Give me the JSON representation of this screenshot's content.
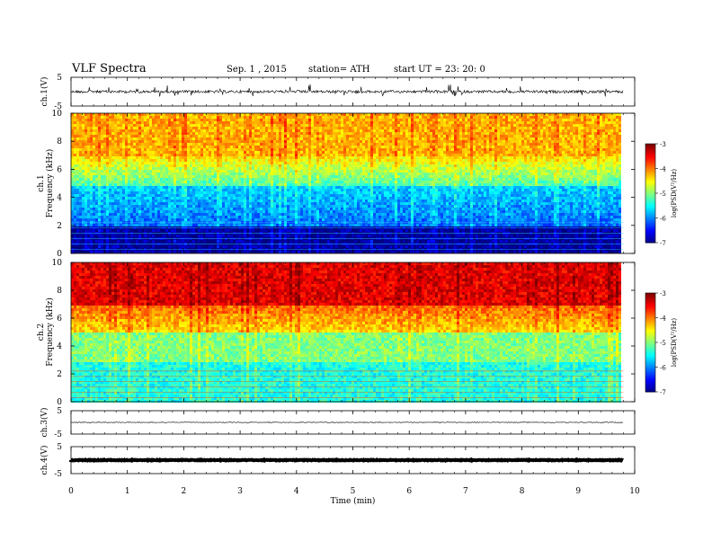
{
  "header": {
    "title": "VLF  Spectra",
    "date": "Sep. 1  , 2015",
    "station": "station= ATH",
    "start": "start  UT  =   23: 20: 0"
  },
  "chart_data": [
    {
      "type": "line",
      "panel": "ch1-waveform",
      "ylabel": "ch.1(V)",
      "yticks": [
        "5",
        "-5"
      ],
      "ylim": [
        -5,
        5
      ],
      "x_range_min": [
        0,
        9.8
      ],
      "note_values": "noisy waveform centred near 0 V with spikes up to about +2/-3 V"
    },
    {
      "type": "heatmap",
      "panel": "ch1-spectrogram",
      "ylabel": "ch.1\nFrequency  (kHz)",
      "yticks": [
        "0",
        "2",
        "4",
        "6",
        "8",
        "10"
      ],
      "ylim": [
        0,
        10
      ],
      "xlim": [
        0,
        9.8
      ],
      "colorbar": {
        "label": "log(PSD(V²/Hz)",
        "ticks": [
          "-3",
          "-4",
          "-5",
          "-6",
          "-7"
        ],
        "range": [
          -7,
          -3
        ]
      },
      "description_levels": {
        "below_2kHz": -7,
        "2_to_5kHz": -6,
        "5_to_7kHz": -5,
        "above_7kHz": -4
      }
    },
    {
      "type": "heatmap",
      "panel": "ch2-spectrogram",
      "ylabel": "ch.2\nFrequency  (kHz)",
      "yticks": [
        "0",
        "2",
        "4",
        "6",
        "8",
        "10"
      ],
      "ylim": [
        0,
        10
      ],
      "xlim": [
        0,
        9.8
      ],
      "colorbar": {
        "label": "log(PSD(V²/Hz)",
        "ticks": [
          "-3",
          "-4",
          "-5",
          "-6",
          "-7"
        ],
        "range": [
          -7,
          -3
        ]
      },
      "description_levels": {
        "below_3kHz": -5.5,
        "3_to_5kHz": -5,
        "5_to_7kHz": -4.3,
        "above_7kHz": -3.5
      }
    },
    {
      "type": "line",
      "panel": "ch3-waveform",
      "ylabel": "ch.3(V)",
      "yticks": [
        "5",
        "-5"
      ],
      "ylim": [
        -5,
        5
      ],
      "level": 0
    },
    {
      "type": "line",
      "panel": "ch4-waveform",
      "ylabel": "ch.4(V)",
      "yticks": [
        "5",
        "-5"
      ],
      "ylim": [
        -5,
        5
      ],
      "level": 0
    }
  ],
  "xaxis": {
    "label": "Time  (min)",
    "ticks": [
      "0",
      "1",
      "2",
      "3",
      "4",
      "5",
      "6",
      "7",
      "8",
      "9",
      "10"
    ],
    "range": [
      0,
      10
    ]
  }
}
